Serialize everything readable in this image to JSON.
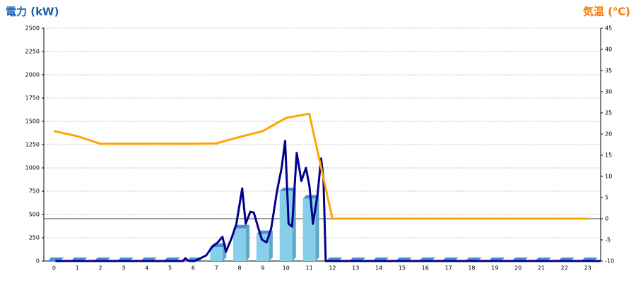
{
  "chart_data": {
    "type": "combo",
    "y_title": "電力 (kW)",
    "y2_title": "気温 (℃)",
    "categories": [
      "0",
      "1",
      "2",
      "3",
      "4",
      "5",
      "6",
      "7",
      "8",
      "9",
      "10",
      "11",
      "12",
      "13",
      "14",
      "15",
      "16",
      "17",
      "18",
      "19",
      "20",
      "21",
      "22",
      "23"
    ],
    "ylim": [
      0,
      2500
    ],
    "yticks": [
      0,
      250,
      500,
      750,
      1000,
      1250,
      1500,
      1750,
      2000,
      2250,
      2500
    ],
    "y2lim": [
      -10,
      45
    ],
    "y2ticks": [
      -10,
      -5,
      0,
      5,
      10,
      15,
      20,
      25,
      30,
      35,
      40,
      45
    ],
    "grid": true,
    "bars": {
      "color": "#87ceeb",
      "values": [
        0,
        0,
        0,
        0,
        0,
        0,
        0,
        150,
        350,
        290,
        750,
        670,
        0,
        0,
        0,
        0,
        0,
        0,
        0,
        0,
        0,
        0,
        0,
        0
      ]
    },
    "power_line": {
      "color": "#00008b",
      "x": [
        0,
        5.5,
        5.6,
        5.75,
        6,
        6.25,
        6.5,
        6.75,
        7,
        7.2,
        7.35,
        7.6,
        7.8,
        8.05,
        8.2,
        8.4,
        8.55,
        8.75,
        8.9,
        9.1,
        9.3,
        9.55,
        9.75,
        9.9,
        10.05,
        10.2,
        10.4,
        10.6,
        10.8,
        10.95,
        11.1,
        11.3,
        11.45,
        11.55,
        11.65,
        23.5
      ],
      "values": [
        0,
        0,
        30,
        0,
        0,
        30,
        60,
        150,
        200,
        260,
        100,
        250,
        400,
        780,
        400,
        530,
        520,
        350,
        230,
        200,
        350,
        750,
        1000,
        1290,
        400,
        370,
        1160,
        860,
        1000,
        800,
        400,
        720,
        1100,
        900,
        0,
        0
      ]
    },
    "temperature": {
      "color": "#ffa500",
      "axis": "y2",
      "values": [
        20.7,
        19.5,
        17.7,
        17.7,
        17.7,
        17.7,
        17.7,
        17.8,
        19.3,
        20.7,
        23.8,
        24.8,
        0,
        0,
        0,
        0,
        0,
        0,
        0,
        0,
        0,
        0,
        0,
        0
      ]
    }
  }
}
